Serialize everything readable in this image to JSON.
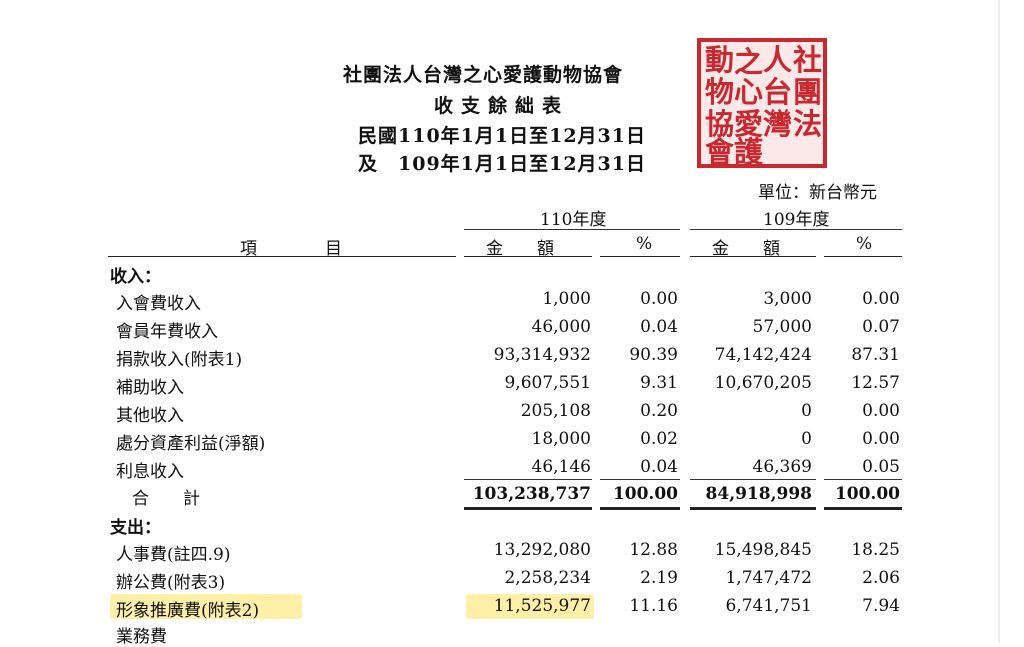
{
  "header": {
    "org": "社團法人台灣之心愛護動物協會",
    "title": "收支餘絀表",
    "period1": "民國110年1月1日至12月31日",
    "period2": "及　109年1月1日至12月31日",
    "unit": "單位：新台幣元"
  },
  "stamp": {
    "chars": [
      "社",
      "人",
      "動",
      "團",
      "台",
      "之",
      "物",
      "法",
      "心",
      "灣",
      "協",
      "愛",
      "會",
      "護"
    ],
    "color": "#c8282e"
  },
  "columns": {
    "item": "項　　　　目",
    "year1": "110年度",
    "year2": "109年度",
    "amount1": "金　　額",
    "pct1": "%",
    "amount2": "金　　額",
    "pct2": "%"
  },
  "sections": {
    "income": "收入：",
    "expense": "支出："
  },
  "income_rows": [
    {
      "label": "入會費收入",
      "a1": "1,000",
      "p1": "0.00",
      "a2": "3,000",
      "p2": "0.00"
    },
    {
      "label": "會員年費收入",
      "a1": "46,000",
      "p1": "0.04",
      "a2": "57,000",
      "p2": "0.07"
    },
    {
      "label": "捐款收入(附表1)",
      "a1": "93,314,932",
      "p1": "90.39",
      "a2": "74,142,424",
      "p2": "87.31"
    },
    {
      "label": "補助收入",
      "a1": "9,607,551",
      "p1": "9.31",
      "a2": "10,670,205",
      "p2": "12.57"
    },
    {
      "label": "其他收入",
      "a1": "205,108",
      "p1": "0.20",
      "a2": "0",
      "p2": "0.00"
    },
    {
      "label": "處分資產利益(淨額)",
      "a1": "18,000",
      "p1": "0.02",
      "a2": "0",
      "p2": "0.00"
    },
    {
      "label": "利息收入",
      "a1": "46,146",
      "p1": "0.04",
      "a2": "46,369",
      "p2": "0.05"
    }
  ],
  "total": {
    "label": "合　　計",
    "a1": "103,238,737",
    "p1": "100.00",
    "a2": "84,918,998",
    "p2": "100.00"
  },
  "expense_rows": [
    {
      "label": "人事費(註四.9)",
      "a1": "13,292,080",
      "p1": "12.88",
      "a2": "15,498,845",
      "p2": "18.25"
    },
    {
      "label": "辦公費(附表3)",
      "a1": "2,258,234",
      "p1": "2.19",
      "a2": "1,747,472",
      "p2": "2.06"
    },
    {
      "label": "形象推廣費(附表2)",
      "a1": "11,525,977",
      "p1": "11.16",
      "a2": "6,741,751",
      "p2": "7.94"
    },
    {
      "label": "業務費",
      "a1": "",
      "p1": "",
      "a2": "",
      "p2": ""
    }
  ],
  "highlight_color": "#ffe678"
}
